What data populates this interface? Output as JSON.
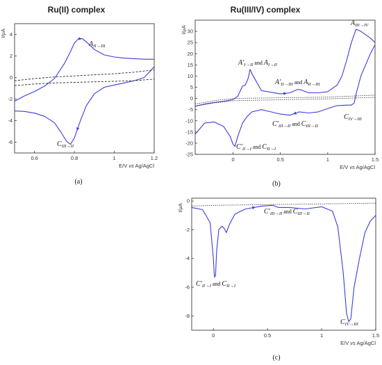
{
  "figure": {
    "titles": {
      "a": "Ru(II) complex",
      "b": "Ru(III/IV) complex"
    },
    "panel_labels": [
      "(a)",
      "(b)",
      "(c)"
    ],
    "ylabel": "I/μA",
    "xlabel": {
      "prefix": "E/V ",
      "vs": "vs",
      "suffix": " Ag/AgCl"
    },
    "annotations": {
      "a_anodic": {
        "main": "A",
        "sub": "II→III"
      },
      "a_cathodic": {
        "main": "C",
        "sub": "III→II"
      },
      "b_anodic_1": {
        "p1": "A′",
        "s1": "I→II",
        "and": " and ",
        "p2": "A",
        "s2": "I→II"
      },
      "b_anodic_2": {
        "p1": "A′",
        "s1": "II→III",
        "and": " and ",
        "p2": "A",
        "s2": "II→III"
      },
      "b_anodic_3": {
        "main": "A",
        "sub": "III→IV"
      },
      "b_cathodic_1": {
        "p1": "C′",
        "s1": "II→I",
        "and": " and ",
        "p2": "C",
        "s2": "II→I"
      },
      "b_cathodic_2": {
        "p1": "C′",
        "s1": "III→II",
        "and": " and ",
        "p2": "C",
        "s2": "III→II"
      },
      "b_cathodic_3": {
        "main": "C",
        "sub": "IV→III"
      },
      "c_1": {
        "p1": "C′",
        "s1": "II→I",
        "and": " and ",
        "p2": "C",
        "s2": "II→I"
      },
      "c_2": {
        "p1": "C′",
        "s1": "III→II",
        "and": " and ",
        "p2": "C",
        "s2": "III→II"
      },
      "c_3": {
        "main": "C",
        "sub": "IV→III"
      }
    },
    "colors": {
      "scan": "#3b3bdc",
      "background": "#222222"
    }
  },
  "chart_data": [
    {
      "id": "a",
      "type": "line",
      "title": "Ru(II) complex",
      "xlabel": "E/V vs Ag/AgCl",
      "ylabel": "I/μA",
      "xlim": [
        0.5,
        1.2
      ],
      "ylim": [
        -7,
        5
      ],
      "xticks": [
        0.6,
        0.8,
        1.0,
        1.2
      ],
      "yticks": [
        -6,
        -4,
        -2,
        0,
        2,
        4
      ],
      "series": [
        {
          "style": "solid",
          "x": [
            0.5,
            0.55,
            0.6,
            0.65,
            0.7,
            0.75,
            0.78,
            0.8,
            0.82,
            0.84,
            0.86,
            0.9,
            0.95,
            1.0,
            1.05,
            1.1,
            1.15,
            1.2
          ],
          "y": [
            -2.2,
            -1.7,
            -1.3,
            -0.8,
            -0.1,
            1.3,
            2.4,
            3.2,
            3.6,
            3.6,
            3.3,
            2.6,
            2.1,
            1.9,
            1.8,
            1.75,
            1.7,
            1.7
          ]
        },
        {
          "style": "solid",
          "x": [
            1.2,
            1.15,
            1.1,
            1.05,
            1.0,
            0.95,
            0.9,
            0.86,
            0.83,
            0.8,
            0.78,
            0.76,
            0.73,
            0.7,
            0.65,
            0.6,
            0.55,
            0.5
          ],
          "y": [
            1.0,
            0.0,
            -0.3,
            -0.5,
            -0.7,
            -0.9,
            -1.5,
            -2.6,
            -4.0,
            -5.6,
            -6.2,
            -5.9,
            -5.0,
            -4.2,
            -3.6,
            -3.3,
            -3.15,
            -3.1
          ]
        },
        {
          "style": "dashed",
          "x": [
            0.5,
            0.6,
            0.7,
            0.8,
            0.9,
            1.0,
            1.1,
            1.2
          ],
          "y": [
            -0.3,
            -0.1,
            0.05,
            0.15,
            0.25,
            0.35,
            0.5,
            0.7
          ]
        },
        {
          "style": "dashed",
          "x": [
            0.5,
            0.6,
            0.7,
            0.8,
            0.9,
            1.0,
            1.1,
            1.2
          ],
          "y": [
            -0.75,
            -0.6,
            -0.5,
            -0.45,
            -0.4,
            -0.35,
            -0.3,
            -0.15
          ]
        }
      ]
    },
    {
      "id": "b",
      "type": "line",
      "title": "Ru(III/IV) complex",
      "xlabel": "E/V vs Ag/AgCl",
      "ylabel": "I/μA",
      "xlim": [
        -0.4,
        1.5
      ],
      "ylim": [
        -25,
        35
      ],
      "xticks": [
        0.0,
        0.5,
        1.0,
        1.5
      ],
      "yticks": [
        -25,
        -20,
        -15,
        -10,
        -5,
        0,
        5,
        10,
        15,
        20,
        25,
        30
      ],
      "series": [
        {
          "style": "solid",
          "x": [
            -0.4,
            -0.3,
            -0.2,
            -0.1,
            0.0,
            0.05,
            0.1,
            0.13,
            0.16,
            0.18,
            0.2,
            0.3,
            0.5,
            0.6,
            0.68,
            0.72,
            0.8,
            0.9,
            1.0,
            1.1,
            1.15,
            1.2,
            1.25,
            1.3,
            1.35,
            1.4,
            1.45,
            1.5
          ],
          "y": [
            -3.5,
            -2.5,
            -1.8,
            -1.3,
            -0.5,
            1.0,
            5.5,
            6.0,
            9.0,
            13.0,
            11.0,
            3.5,
            2.0,
            2.5,
            4.0,
            3.8,
            2.5,
            2.5,
            3.0,
            6.0,
            10.0,
            17.0,
            25.0,
            31.0,
            30.0,
            28.5,
            27.0,
            25.0
          ]
        },
        {
          "style": "solid",
          "x": [
            1.5,
            1.45,
            1.4,
            1.35,
            1.3,
            1.28,
            1.25,
            1.2,
            1.1,
            1.0,
            0.9,
            0.8,
            0.7,
            0.6,
            0.5,
            0.4,
            0.3,
            0.2,
            0.15,
            0.1,
            0.05,
            0.02,
            0.0,
            -0.03,
            -0.1,
            -0.2,
            -0.3,
            -0.4
          ],
          "y": [
            24.0,
            20.0,
            15.0,
            10.0,
            2.0,
            -2.0,
            -3.0,
            -3.0,
            -3.2,
            -4.5,
            -6.0,
            -6.5,
            -6.0,
            -7.5,
            -7.0,
            -6.0,
            -5.0,
            -6.0,
            -8.0,
            -11.0,
            -17.0,
            -21.5,
            -20.5,
            -17.0,
            -12.5,
            -10.5,
            -11.0,
            -16.0
          ]
        },
        {
          "style": "dotted",
          "x": [
            -0.4,
            -0.2,
            0.0,
            0.5,
            1.0,
            1.5
          ],
          "y": [
            -2.5,
            -1.0,
            0.0,
            0.3,
            0.6,
            1.5
          ]
        },
        {
          "style": "dotted",
          "x": [
            -0.4,
            -0.2,
            0.0,
            0.5,
            1.0,
            1.5
          ],
          "y": [
            -3.5,
            -2.0,
            -1.0,
            -0.6,
            -0.2,
            0.5
          ]
        }
      ]
    },
    {
      "id": "c",
      "type": "line",
      "xlabel": "E/V vs Ag/AgCl",
      "ylabel": "I/μA",
      "xlim": [
        -0.2,
        1.5
      ],
      "ylim": [
        -9,
        0.2
      ],
      "xticks": [
        0.0,
        0.5,
        1.0,
        1.5
      ],
      "yticks": [
        -8,
        -6,
        -4,
        -2,
        0
      ],
      "series": [
        {
          "style": "solid",
          "x": [
            -0.2,
            -0.1,
            -0.03,
            0.0,
            0.01,
            0.02,
            0.03,
            0.05,
            0.08,
            0.1,
            0.12,
            0.15,
            0.2,
            0.3,
            0.45,
            0.55,
            0.6,
            0.7,
            0.85,
            1.0,
            1.1,
            1.15,
            1.2,
            1.23,
            1.25,
            1.27,
            1.3,
            1.35,
            1.4,
            1.45,
            1.5
          ],
          "y": [
            -0.45,
            -0.6,
            -1.5,
            -4.0,
            -5.3,
            -5.2,
            -3.5,
            -2.0,
            -1.75,
            -1.9,
            -2.2,
            -1.6,
            -0.9,
            -0.55,
            -0.35,
            -0.3,
            -0.45,
            -0.45,
            -0.55,
            -0.4,
            -0.7,
            -1.8,
            -5.0,
            -7.8,
            -8.4,
            -8.2,
            -6.0,
            -4.0,
            -2.2,
            -1.4,
            -1.0
          ]
        },
        {
          "style": "dotted",
          "x": [
            -0.2,
            0.0,
            0.5,
            1.0,
            1.5
          ],
          "y": [
            -0.35,
            -0.3,
            -0.25,
            -0.2,
            -0.15
          ]
        }
      ]
    }
  ]
}
